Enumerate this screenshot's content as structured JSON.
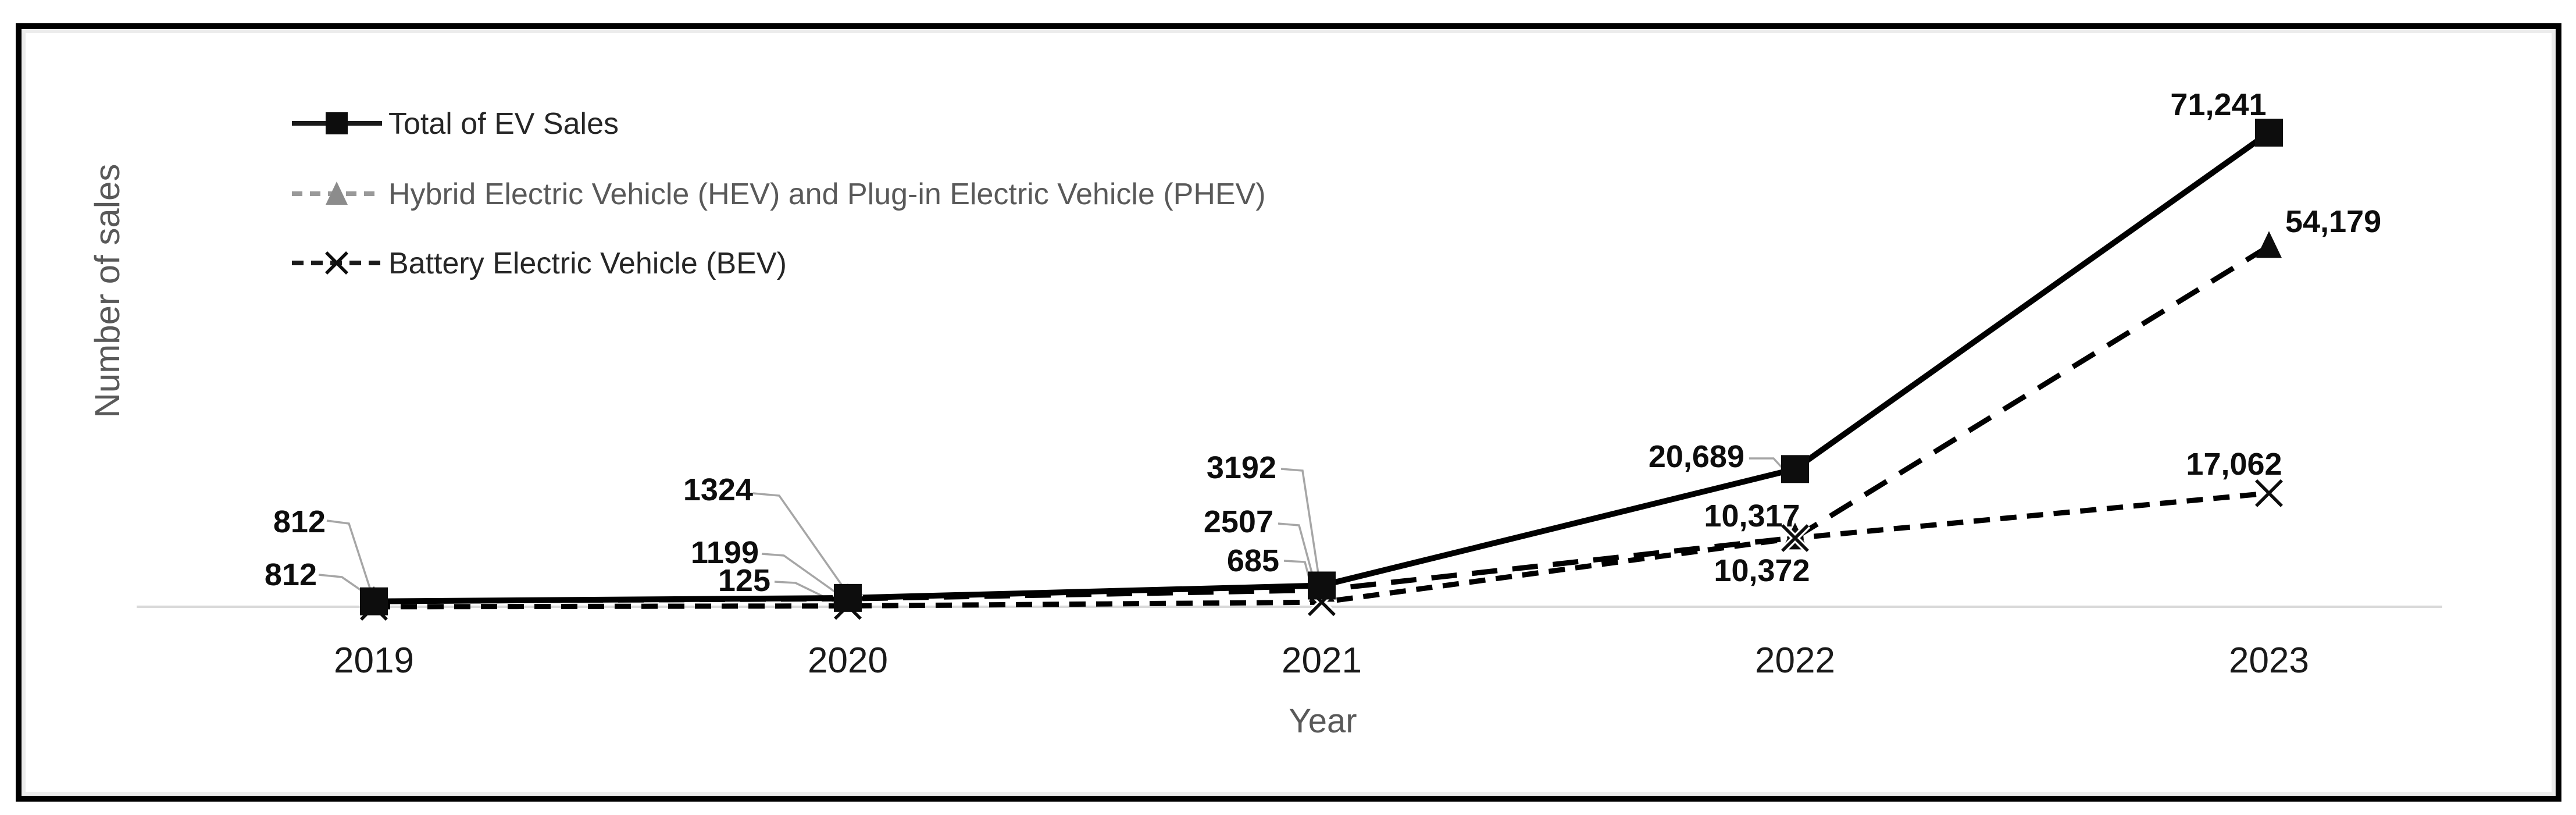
{
  "chart_data": {
    "type": "line",
    "title": "",
    "xlabel": "Year",
    "ylabel": "Number of sales",
    "categories": [
      "2019",
      "2020",
      "2021",
      "2022",
      "2023"
    ],
    "series": [
      {
        "name": "Total of EV Sales",
        "marker": "square",
        "line_style": "solid",
        "values": [
          812,
          1324,
          3192,
          20689,
          71241
        ],
        "labels": [
          "812",
          "1324",
          "3192",
          "20,689",
          "71,241"
        ]
      },
      {
        "name": "Hybrid Electric Vehicle (HEV) and Plug-in Electric Vehicle (PHEV)",
        "marker": "triangle",
        "line_style": "dashed",
        "values": [
          812,
          1199,
          2507,
          10372,
          54179
        ],
        "labels": [
          "812",
          "1199",
          "2507",
          "10,372",
          "54,179"
        ]
      },
      {
        "name": "Battery Electric Vehicle (BEV)",
        "marker": "x",
        "line_style": "dashed",
        "values": [
          0,
          125,
          685,
          10317,
          17062
        ],
        "labels": [
          "",
          "125",
          "685",
          "10,317",
          "17,062"
        ]
      }
    ],
    "ylim": [
      0,
      75000
    ],
    "grid": false,
    "legend_position": "top-left",
    "colors": {
      "series_line": "#000000",
      "legend_hev_sample": "#8c8c8c",
      "axis_text": "#595959",
      "baseline": "#d9d9d9",
      "leader_line": "#a6a6a6",
      "data_label": "#0d0d0d"
    }
  }
}
